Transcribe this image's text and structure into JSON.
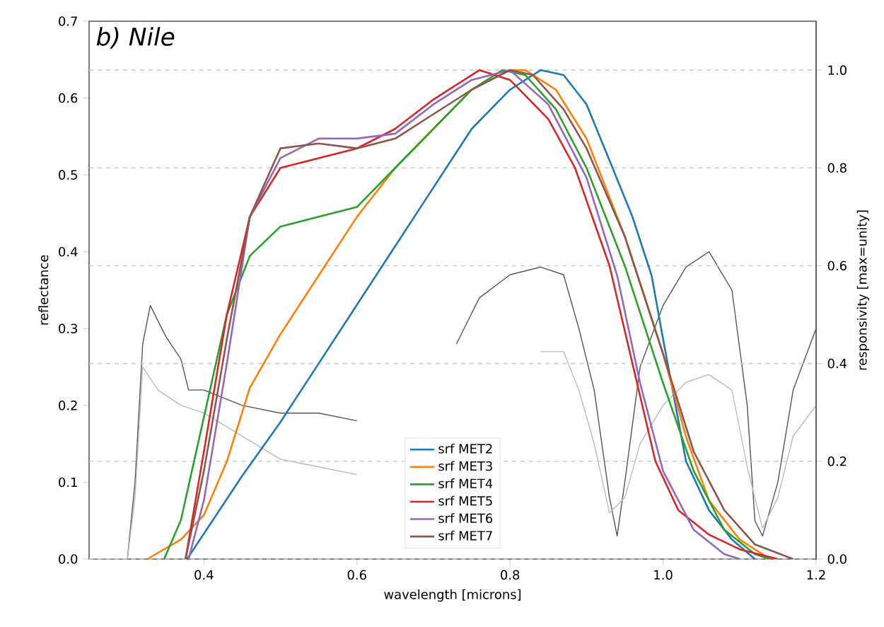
{
  "chart_data": {
    "type": "line",
    "title": "b) Nile",
    "xlabel": "wavelength [microns]",
    "ylabel": "reflectance",
    "y2label": "responsivity [max=unity]",
    "xlim": [
      0.25,
      1.2
    ],
    "ylim": [
      0,
      0.7
    ],
    "y2lim": [
      0,
      1.1
    ],
    "xticks": [
      {
        "value": 0.4,
        "label": "0.4"
      },
      {
        "value": 0.6,
        "label": "0.6"
      },
      {
        "value": 0.8,
        "label": "0.8"
      },
      {
        "value": 1.0,
        "label": "1.0"
      },
      {
        "value": 1.2,
        "label": "1.2"
      }
    ],
    "yticks": [
      {
        "value": 0,
        "label": "0.0"
      },
      {
        "value": 0.1,
        "label": "0.1"
      },
      {
        "value": 0.2,
        "label": "0.2"
      },
      {
        "value": 0.3,
        "label": "0.3"
      },
      {
        "value": 0.4,
        "label": "0.4"
      },
      {
        "value": 0.5,
        "label": "0.5"
      },
      {
        "value": 0.6,
        "label": "0.6"
      },
      {
        "value": 0.7,
        "label": "0.7"
      }
    ],
    "y2ticks": [
      {
        "value": 0,
        "label": "0.0"
      },
      {
        "value": 0.2,
        "label": "0.2"
      },
      {
        "value": 0.4,
        "label": "0.4"
      },
      {
        "value": 0.6,
        "label": "0.6"
      },
      {
        "value": 0.8,
        "label": "0.8"
      },
      {
        "value": 1.0,
        "label": "1.0"
      }
    ],
    "grid": "y",
    "legend": "bottom",
    "series": [
      {
        "color": "#555555",
        "x": [
          0.25,
          0.3,
          0.31,
          0.32,
          0.33,
          0.35,
          0.37,
          0.38,
          0.4,
          0.45,
          0.5,
          0.55,
          0.6,
          0.62,
          0.66,
          0.7,
          0.73,
          0.76,
          0.8,
          0.84,
          0.87,
          0.89,
          0.91,
          0.93,
          0.94,
          0.95,
          0.97,
          1.0,
          1.03,
          1.06,
          1.09,
          1.11,
          1.12,
          1.13,
          1.15,
          1.17,
          1.2
        ],
        "values": [
          0,
          0,
          0.1,
          0.28,
          0.33,
          0.29,
          0.26,
          0.22,
          0.22,
          0.2,
          0.19,
          0.19,
          0.18,
          null,
          null,
          null,
          0.28,
          0.34,
          0.37,
          0.38,
          0.37,
          0.3,
          0.22,
          0.08,
          0.03,
          0.1,
          0.25,
          0.33,
          0.38,
          0.4,
          0.35,
          0.2,
          0.05,
          0.03,
          0.1,
          0.22,
          0.3
        ]
      },
      {
        "color": "#bbbbbb",
        "x": [
          0.25,
          0.3,
          0.31,
          0.32,
          0.34,
          0.37,
          0.4,
          0.45,
          0.5,
          0.55,
          0.6,
          0.62,
          0.7,
          0.8,
          0.84,
          0.87,
          0.89,
          0.91,
          0.93,
          0.95,
          0.97,
          1.0,
          1.03,
          1.06,
          1.09,
          1.11,
          1.13,
          1.15,
          1.17,
          1.2
        ],
        "values": [
          0,
          0,
          0.08,
          0.25,
          0.22,
          0.2,
          0.19,
          0.16,
          0.13,
          0.12,
          0.11,
          null,
          null,
          null,
          0.27,
          0.27,
          0.22,
          0.15,
          0.06,
          0.08,
          0.15,
          0.2,
          0.23,
          0.24,
          0.22,
          0.12,
          0.04,
          0.08,
          0.16,
          0.2
        ]
      },
      {
        "name": "srf MET2",
        "color": "#1f77b4",
        "axis": "y2",
        "x": [
          0.378,
          0.45,
          0.5,
          0.55,
          0.6,
          0.65,
          0.7,
          0.75,
          0.8,
          0.84,
          0.87,
          0.9,
          0.934,
          0.96,
          0.985,
          1.0,
          1.03,
          1.06,
          1.09,
          1.12
        ],
        "values": [
          0,
          0.17,
          0.28,
          0.4,
          0.52,
          0.64,
          0.76,
          0.88,
          0.96,
          1.0,
          0.99,
          0.93,
          0.8,
          0.7,
          0.58,
          0.45,
          0.2,
          0.1,
          0.04,
          0
        ]
      },
      {
        "name": "srf MET3",
        "color": "#ff7f0e",
        "axis": "y2",
        "x": [
          0.326,
          0.37,
          0.4,
          0.43,
          0.46,
          0.5,
          0.55,
          0.6,
          0.65,
          0.7,
          0.75,
          0.8,
          0.82,
          0.86,
          0.9,
          0.95,
          1.0,
          1.03,
          1.06,
          1.1,
          1.14
        ],
        "values": [
          0,
          0.04,
          0.09,
          0.2,
          0.35,
          0.46,
          0.58,
          0.7,
          0.8,
          0.88,
          0.96,
          1.0,
          1.0,
          0.96,
          0.86,
          0.66,
          0.42,
          0.25,
          0.12,
          0.04,
          0
        ]
      },
      {
        "name": "srf MET4",
        "color": "#2ca02c",
        "axis": "y2",
        "x": [
          0.348,
          0.37,
          0.4,
          0.43,
          0.46,
          0.5,
          0.55,
          0.6,
          0.65,
          0.7,
          0.75,
          0.79,
          0.82,
          0.86,
          0.9,
          0.95,
          1.0,
          1.04,
          1.08,
          1.12,
          1.14
        ],
        "values": [
          0,
          0.08,
          0.29,
          0.5,
          0.62,
          0.68,
          0.7,
          0.72,
          0.8,
          0.88,
          0.96,
          1.0,
          0.99,
          0.92,
          0.8,
          0.6,
          0.36,
          0.18,
          0.06,
          0.01,
          0
        ]
      },
      {
        "name": "srf MET5",
        "color": "#d62728",
        "axis": "y2",
        "x": [
          0.376,
          0.4,
          0.43,
          0.46,
          0.5,
          0.55,
          0.6,
          0.65,
          0.7,
          0.76,
          0.8,
          0.85,
          0.885,
          0.93,
          0.96,
          0.99,
          1.02,
          1.06,
          1.1,
          1.15
        ],
        "values": [
          0,
          0.22,
          0.5,
          0.7,
          0.8,
          0.82,
          0.84,
          0.88,
          0.94,
          1.0,
          0.98,
          0.9,
          0.8,
          0.6,
          0.4,
          0.2,
          0.1,
          0.05,
          0.02,
          0
        ]
      },
      {
        "name": "srf MET6",
        "color": "#9467bd",
        "axis": "y2",
        "x": [
          0.38,
          0.4,
          0.43,
          0.46,
          0.5,
          0.55,
          0.6,
          0.65,
          0.7,
          0.75,
          0.8,
          0.85,
          0.9,
          0.94,
          0.97,
          1.0,
          1.04,
          1.08,
          1.1
        ],
        "values": [
          0,
          0.12,
          0.4,
          0.7,
          0.82,
          0.86,
          0.86,
          0.87,
          0.93,
          0.98,
          1.0,
          0.93,
          0.78,
          0.58,
          0.36,
          0.18,
          0.06,
          0.01,
          0
        ]
      },
      {
        "name": "srf MET7",
        "color": "#8c564b",
        "axis": "y2",
        "x": [
          0.376,
          0.4,
          0.43,
          0.46,
          0.5,
          0.55,
          0.6,
          0.65,
          0.7,
          0.75,
          0.8,
          0.83,
          0.87,
          0.9,
          0.95,
          1.0,
          1.04,
          1.08,
          1.12,
          1.17
        ],
        "values": [
          0,
          0.18,
          0.45,
          0.7,
          0.84,
          0.85,
          0.84,
          0.86,
          0.91,
          0.96,
          1.0,
          0.99,
          0.92,
          0.84,
          0.66,
          0.42,
          0.22,
          0.1,
          0.03,
          0
        ]
      }
    ]
  }
}
